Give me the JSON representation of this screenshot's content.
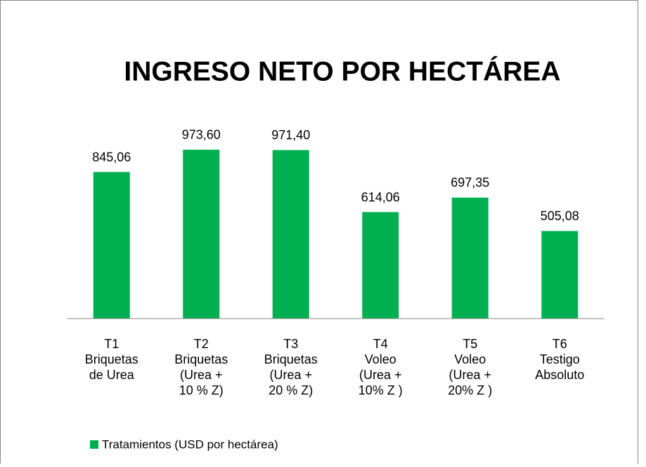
{
  "chart_data": {
    "type": "bar",
    "title": "INGRESO NETO POR HECTÁREA",
    "categories": [
      "T1\nBriquetas\nde Urea",
      "T2\nBriquetas\n(Urea +\n10 % Z)",
      "T3\nBriquetas\n(Urea +\n20 % Z)",
      "T4\nVoleo\n(Urea +\n10% Z )",
      "T5\nVoleo\n(Urea +\n20% Z )",
      "T6\nTestigo\nAbsoluto"
    ],
    "series": [
      {
        "name": "Tratamientos (USD por hectárea)",
        "color": "#00b050",
        "values": [
          845.06,
          973.6,
          971.4,
          614.06,
          697.35,
          505.08
        ],
        "value_labels": [
          "845,06",
          "973,60",
          "971,40",
          "614,06",
          "697,35",
          "505,08"
        ]
      }
    ],
    "ylim": [
      0,
      1200
    ],
    "legend": "bottom"
  }
}
